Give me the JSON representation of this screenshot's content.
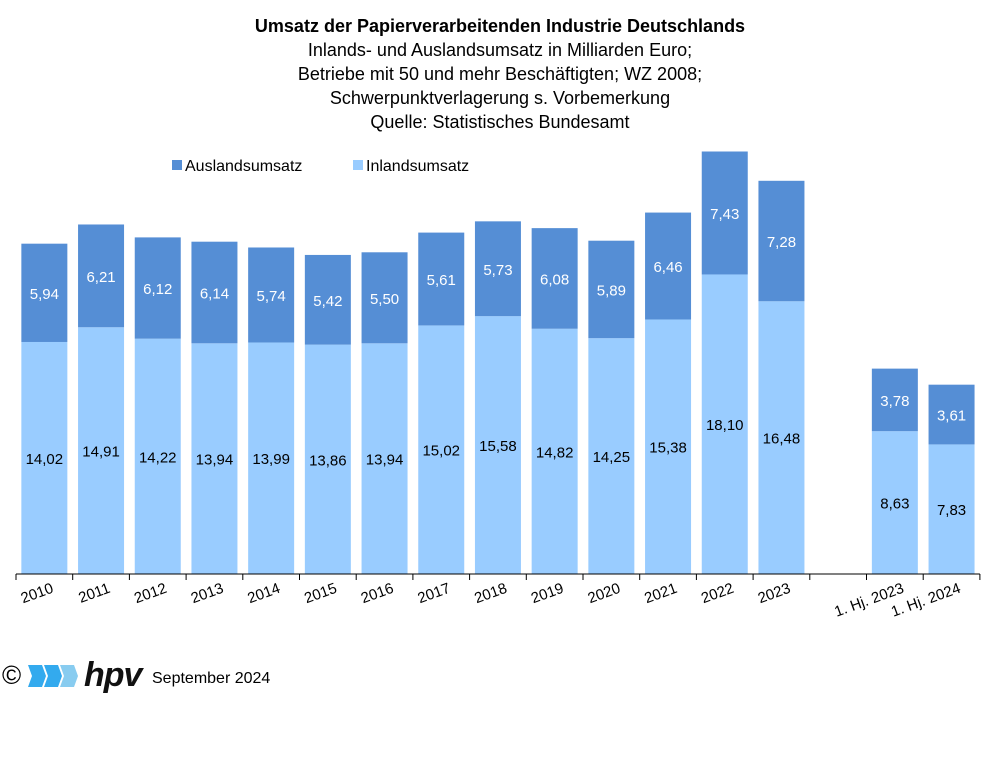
{
  "chart_data": {
    "type": "bar",
    "stacked": true,
    "title": "Umsatz der Papierverarbeitenden Industrie Deutschlands",
    "subtitle_lines": [
      "Inlands- und Auslandsumsatz  in Milliarden Euro;",
      "Betriebe mit 50 und mehr  Beschäftigten; WZ 2008;",
      "Schwerpunktverlagerung  s. Vorbemerkung",
      "Quelle:  Statistisches Bundesamt"
    ],
    "categories": [
      "2010",
      "2011",
      "2012",
      "2013",
      "2014",
      "2015",
      "2016",
      "2017",
      "2018",
      "2019",
      "2020",
      "2021",
      "2022",
      "2023",
      "",
      "1. Hj. 2023",
      "1. Hj. 2024"
    ],
    "series": [
      {
        "name": "Inlandsumsatz",
        "color": "#99ccff",
        "values": [
          14.02,
          14.91,
          14.22,
          13.94,
          13.99,
          13.86,
          13.94,
          15.02,
          15.58,
          14.82,
          14.25,
          15.38,
          18.1,
          16.48,
          null,
          8.63,
          7.83
        ],
        "labels": [
          "14,02",
          "14,91",
          "14,22",
          "13,94",
          "13,99",
          "13,86",
          "13,94",
          "15,02",
          "15,58",
          "14,82",
          "14,25",
          "15,38",
          "18,10",
          "16,48",
          "",
          "8,63",
          "7,83"
        ]
      },
      {
        "name": "Auslandsumsatz",
        "color": "#558ed5",
        "values": [
          5.94,
          6.21,
          6.12,
          6.14,
          5.74,
          5.42,
          5.5,
          5.61,
          5.73,
          6.08,
          5.89,
          6.46,
          7.43,
          7.28,
          null,
          3.78,
          3.61
        ],
        "labels": [
          "5,94",
          "6,21",
          "6,12",
          "6,14",
          "5,74",
          "5,42",
          "5,50",
          "5,61",
          "5,73",
          "6,08",
          "5,89",
          "6,46",
          "7,43",
          "7,28",
          "",
          "3,78",
          "3,61"
        ]
      }
    ],
    "legend": [
      "Auslandsumsatz",
      "Inlandsumsatz"
    ],
    "legend_placement": "top-left",
    "grid": false
  },
  "footer": {
    "copyright": "©",
    "brand": "hpv",
    "date": "September 2024"
  }
}
